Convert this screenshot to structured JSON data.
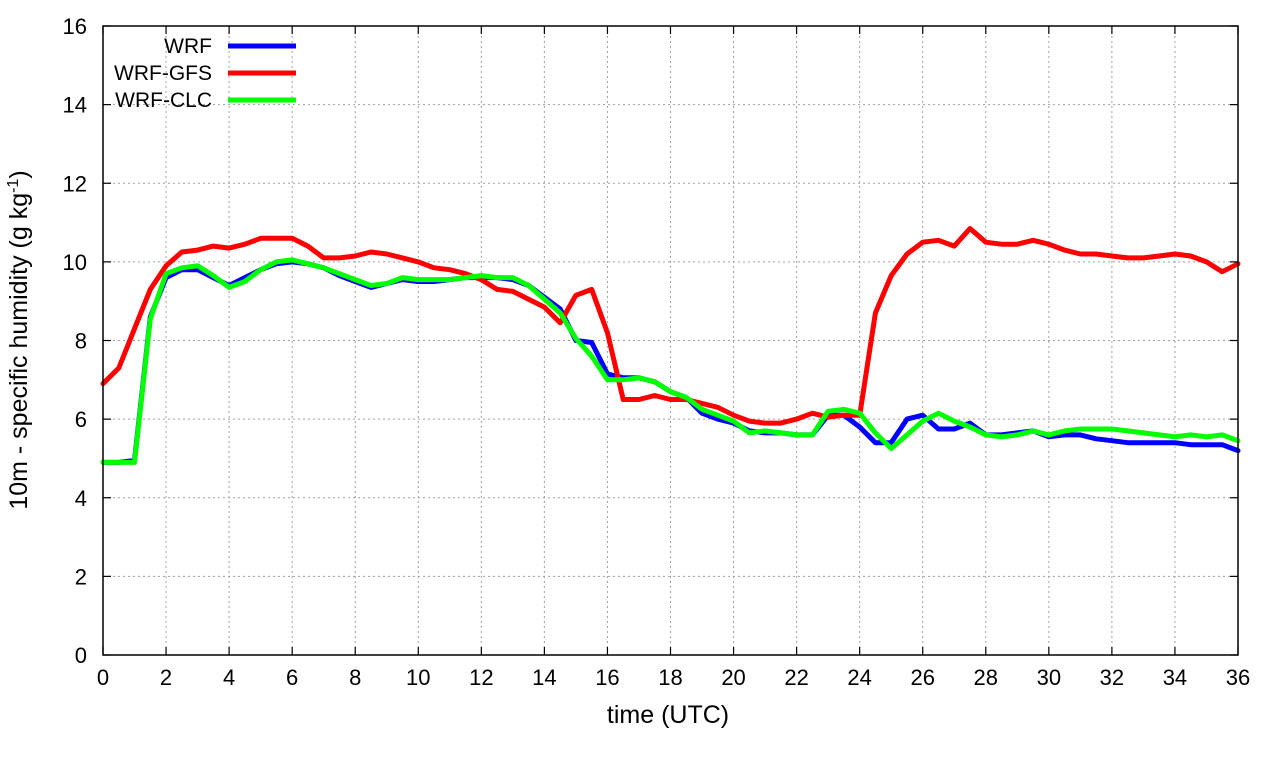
{
  "chart_data": {
    "type": "line",
    "xlabel": "time (UTC)",
    "ylabel_main": "10m - specific humidity (g kg",
    "ylabel_sup": "-1",
    "ylabel_end": ")",
    "xlim": [
      0,
      36
    ],
    "ylim": [
      0,
      16
    ],
    "xticks": [
      0,
      2,
      4,
      6,
      8,
      10,
      12,
      14,
      16,
      18,
      20,
      22,
      24,
      26,
      28,
      30,
      32,
      34,
      36
    ],
    "yticks": [
      0,
      2,
      4,
      6,
      8,
      10,
      12,
      14,
      16
    ],
    "grid": true,
    "legend_position": "top-left",
    "series": [
      {
        "name": "WRF",
        "color": "#0000ff",
        "x": [
          0,
          0.5,
          1,
          1.5,
          2,
          2.5,
          3,
          3.5,
          4,
          4.5,
          5,
          5.5,
          6,
          6.5,
          7,
          7.5,
          8,
          8.5,
          9,
          9.5,
          10,
          10.5,
          11,
          11.5,
          12,
          12.5,
          13,
          13.5,
          14,
          14.5,
          15,
          15.5,
          16,
          16.5,
          17,
          17.5,
          18,
          18.5,
          19,
          19.5,
          20,
          20.5,
          21,
          21.5,
          22,
          22.5,
          23,
          23.5,
          24,
          24.5,
          25,
          25.5,
          26,
          26.5,
          27,
          27.5,
          28,
          28.5,
          29,
          29.5,
          30,
          30.5,
          31,
          31.5,
          32,
          32.5,
          33,
          33.5,
          34,
          34.5,
          35,
          35.5,
          36
        ],
        "y": [
          4.9,
          4.9,
          4.95,
          8.6,
          9.6,
          9.8,
          9.8,
          9.6,
          9.4,
          9.6,
          9.8,
          9.95,
          10.0,
          9.95,
          9.85,
          9.65,
          9.5,
          9.35,
          9.45,
          9.55,
          9.5,
          9.5,
          9.55,
          9.6,
          9.6,
          9.6,
          9.55,
          9.4,
          9.1,
          8.8,
          8.0,
          7.95,
          7.15,
          7.05,
          7.05,
          6.95,
          6.7,
          6.55,
          6.15,
          6.0,
          5.9,
          5.7,
          5.65,
          5.65,
          5.6,
          5.6,
          6.1,
          6.1,
          5.8,
          5.4,
          5.4,
          6.0,
          6.1,
          5.75,
          5.75,
          5.9,
          5.6,
          5.6,
          5.65,
          5.7,
          5.55,
          5.6,
          5.6,
          5.5,
          5.45,
          5.4,
          5.4,
          5.4,
          5.4,
          5.35,
          5.35,
          5.35,
          5.2
        ]
      },
      {
        "name": "WRF-GFS",
        "color": "#ff0000",
        "x": [
          0,
          0.5,
          1,
          1.5,
          2,
          2.5,
          3,
          3.5,
          4,
          4.5,
          5,
          5.5,
          6,
          6.5,
          7,
          7.5,
          8,
          8.5,
          9,
          9.5,
          10,
          10.5,
          11,
          11.5,
          12,
          12.5,
          13,
          13.5,
          14,
          14.5,
          15,
          15.5,
          16,
          16.5,
          17,
          17.5,
          18,
          18.5,
          19,
          19.5,
          20,
          20.5,
          21,
          21.5,
          22,
          22.5,
          23,
          23.5,
          24,
          24.5,
          25,
          25.5,
          26,
          26.5,
          27,
          27.5,
          28,
          28.5,
          29,
          29.5,
          30,
          30.5,
          31,
          31.5,
          32,
          32.5,
          33,
          33.5,
          34,
          34.5,
          35,
          35.5,
          36
        ],
        "y": [
          6.9,
          7.3,
          8.3,
          9.3,
          9.9,
          10.25,
          10.3,
          10.4,
          10.35,
          10.45,
          10.6,
          10.6,
          10.6,
          10.4,
          10.1,
          10.1,
          10.15,
          10.25,
          10.2,
          10.1,
          10.0,
          9.85,
          9.8,
          9.7,
          9.55,
          9.3,
          9.25,
          9.05,
          8.85,
          8.45,
          9.15,
          9.3,
          8.2,
          6.5,
          6.5,
          6.6,
          6.5,
          6.5,
          6.4,
          6.3,
          6.1,
          5.95,
          5.9,
          5.9,
          6.0,
          6.15,
          6.05,
          6.1,
          6.1,
          8.7,
          9.65,
          10.2,
          10.5,
          10.55,
          10.4,
          10.85,
          10.5,
          10.45,
          10.45,
          10.55,
          10.45,
          10.3,
          10.2,
          10.2,
          10.15,
          10.1,
          10.1,
          10.15,
          10.2,
          10.15,
          10.0,
          9.75,
          9.95
        ]
      },
      {
        "name": "WRF-CLC",
        "color": "#00ff00",
        "x": [
          0,
          0.5,
          1,
          1.5,
          2,
          2.5,
          3,
          3.5,
          4,
          4.5,
          5,
          5.5,
          6,
          6.5,
          7,
          7.5,
          8,
          8.5,
          9,
          9.5,
          10,
          10.5,
          11,
          11.5,
          12,
          12.5,
          13,
          13.5,
          14,
          14.5,
          15,
          15.5,
          16,
          16.5,
          17,
          17.5,
          18,
          18.5,
          19,
          19.5,
          20,
          20.5,
          21,
          21.5,
          22,
          22.5,
          23,
          23.5,
          24,
          24.5,
          25,
          25.5,
          26,
          26.5,
          27,
          27.5,
          28,
          28.5,
          29,
          29.5,
          30,
          30.5,
          31,
          31.5,
          32,
          32.5,
          33,
          33.5,
          34,
          34.5,
          35,
          35.5,
          36
        ],
        "y": [
          4.9,
          4.9,
          4.9,
          8.55,
          9.7,
          9.85,
          9.9,
          9.65,
          9.35,
          9.5,
          9.8,
          10.0,
          10.05,
          9.95,
          9.85,
          9.7,
          9.55,
          9.4,
          9.45,
          9.6,
          9.55,
          9.55,
          9.55,
          9.6,
          9.65,
          9.6,
          9.6,
          9.4,
          9.05,
          8.7,
          8.05,
          7.6,
          7.0,
          7.0,
          7.05,
          6.95,
          6.7,
          6.55,
          6.25,
          6.1,
          5.95,
          5.65,
          5.7,
          5.65,
          5.6,
          5.6,
          6.2,
          6.25,
          6.15,
          5.65,
          5.25,
          5.6,
          5.95,
          6.15,
          5.95,
          5.8,
          5.6,
          5.55,
          5.6,
          5.7,
          5.6,
          5.7,
          5.75,
          5.75,
          5.75,
          5.7,
          5.65,
          5.6,
          5.55,
          5.6,
          5.55,
          5.6,
          5.45
        ]
      }
    ]
  }
}
